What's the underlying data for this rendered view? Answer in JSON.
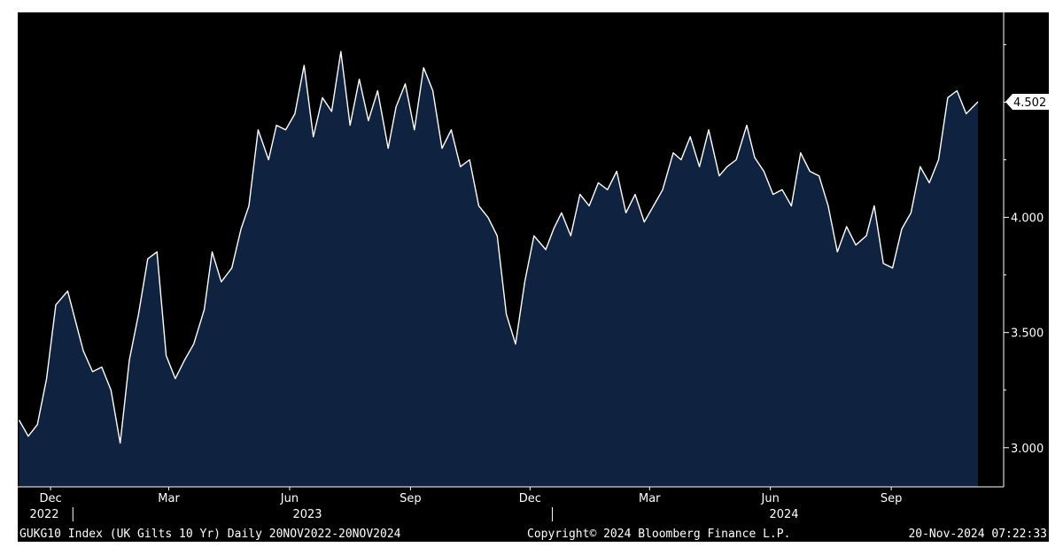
{
  "chart_data": {
    "type": "area",
    "ylim": [
      2.83,
      4.89
    ],
    "y_ticks": [
      "3.000",
      "3.500",
      "4.000"
    ],
    "last_value_label": "4.502",
    "x_month_labels": [
      "Dec",
      "Mar",
      "Jun",
      "Sep",
      "Dec",
      "Mar",
      "Jun",
      "Sep"
    ],
    "x_year_labels": [
      "2022",
      "2023",
      "2024"
    ],
    "grid": false,
    "series": [
      {
        "x": [
          "2022-11-21",
          "2022-11-28",
          "2022-12-05",
          "2022-12-12",
          "2022-12-19",
          "2022-12-28",
          "2023-01-03",
          "2023-01-09",
          "2023-01-16",
          "2023-01-23",
          "2023-01-30",
          "2023-02-06",
          "2023-02-13",
          "2023-02-20",
          "2023-02-27",
          "2023-03-06",
          "2023-03-13",
          "2023-03-20",
          "2023-03-27",
          "2023-04-03",
          "2023-04-11",
          "2023-04-17",
          "2023-04-24",
          "2023-05-02",
          "2023-05-09",
          "2023-05-15",
          "2023-05-22",
          "2023-05-30",
          "2023-06-05",
          "2023-06-12",
          "2023-06-19",
          "2023-06-26",
          "2023-07-03",
          "2023-07-10",
          "2023-07-17",
          "2023-07-24",
          "2023-07-31",
          "2023-08-07",
          "2023-08-14",
          "2023-08-21",
          "2023-08-29",
          "2023-09-04",
          "2023-09-11",
          "2023-09-18",
          "2023-09-25",
          "2023-10-02",
          "2023-10-09",
          "2023-10-16",
          "2023-10-23",
          "2023-10-30",
          "2023-11-06",
          "2023-11-13",
          "2023-11-20",
          "2023-11-27",
          "2023-12-04",
          "2023-12-11",
          "2023-12-18",
          "2023-12-27",
          "2024-01-02",
          "2024-01-08",
          "2024-01-15",
          "2024-01-22",
          "2024-01-29",
          "2024-02-05",
          "2024-02-12",
          "2024-02-19",
          "2024-02-26",
          "2024-03-04",
          "2024-03-11",
          "2024-03-18",
          "2024-03-25",
          "2024-04-02",
          "2024-04-08",
          "2024-04-15",
          "2024-04-22",
          "2024-04-29",
          "2024-05-07",
          "2024-05-13",
          "2024-05-20",
          "2024-05-28",
          "2024-06-03",
          "2024-06-10",
          "2024-06-17",
          "2024-06-24",
          "2024-07-01",
          "2024-07-08",
          "2024-07-15",
          "2024-07-22",
          "2024-07-29",
          "2024-08-05",
          "2024-08-12",
          "2024-08-19",
          "2024-08-27",
          "2024-09-02",
          "2024-09-09",
          "2024-09-16",
          "2024-09-23",
          "2024-09-30",
          "2024-10-07",
          "2024-10-14",
          "2024-10-21",
          "2024-10-28",
          "2024-11-04",
          "2024-11-11",
          "2024-11-20"
        ],
        "y": [
          3.12,
          3.05,
          3.1,
          3.3,
          3.62,
          3.68,
          3.55,
          3.42,
          3.33,
          3.35,
          3.25,
          3.02,
          3.38,
          3.58,
          3.82,
          3.85,
          3.4,
          3.3,
          3.38,
          3.45,
          3.6,
          3.85,
          3.72,
          3.78,
          3.95,
          4.05,
          4.38,
          4.25,
          4.4,
          4.38,
          4.45,
          4.66,
          4.35,
          4.52,
          4.46,
          4.72,
          4.4,
          4.6,
          4.42,
          4.55,
          4.3,
          4.48,
          4.58,
          4.38,
          4.65,
          4.55,
          4.3,
          4.38,
          4.22,
          4.25,
          4.05,
          4.0,
          3.92,
          3.58,
          3.45,
          3.72,
          3.92,
          3.86,
          3.95,
          4.02,
          3.92,
          4.1,
          4.05,
          4.15,
          4.12,
          4.2,
          4.02,
          4.1,
          3.98,
          4.05,
          4.12,
          4.28,
          4.25,
          4.35,
          4.22,
          4.38,
          4.18,
          4.22,
          4.25,
          4.4,
          4.26,
          4.2,
          4.1,
          4.12,
          4.05,
          4.28,
          4.2,
          4.18,
          4.05,
          3.85,
          3.96,
          3.88,
          3.92,
          4.05,
          3.8,
          3.78,
          3.95,
          4.02,
          4.22,
          4.15,
          4.25,
          4.52,
          4.55,
          4.45,
          4.502
        ]
      }
    ]
  },
  "footer": {
    "left": "GUKG10 Index (UK Gilts 10 Yr)  Daily 20NOV2022-20NOV2024",
    "center": "Copyright© 2024 Bloomberg Finance L.P.",
    "right": "20-Nov-2024 07:22:33"
  },
  "colors": {
    "area_fill": "#0f2340",
    "line": "#ffffff",
    "background": "#000000"
  }
}
